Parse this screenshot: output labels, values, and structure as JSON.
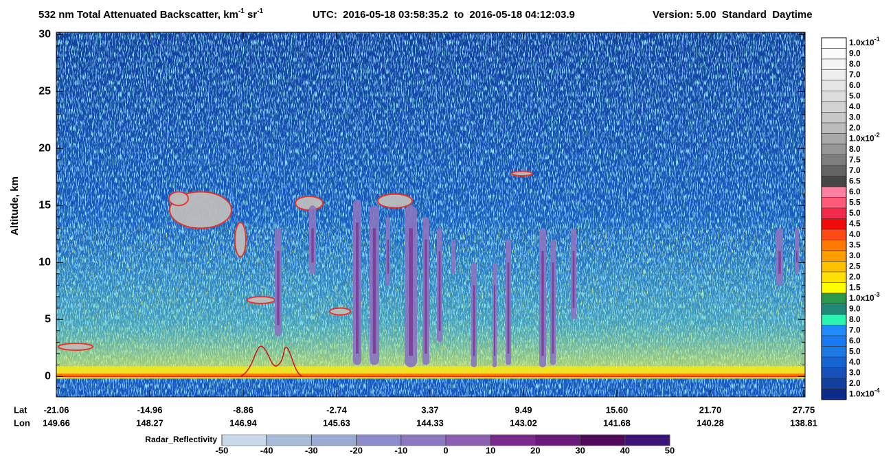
{
  "chart_data": {
    "type": "heatmap",
    "title": {
      "main": "532 nm Total Attenuated Backscatter, km",
      "sup1": "-1",
      "sr": " sr",
      "sup2": "-1",
      "utc": "UTC:  2016-05-18 03:58:35.2  to  2016-05-18 04:12:03.9",
      "version": "Version: 5.00  Standard  Daytime"
    },
    "y_label": "Altitude, km",
    "ylim": [
      -1.8,
      30.2
    ],
    "yticks": [
      0,
      5,
      10,
      15,
      20,
      25,
      30
    ],
    "x_rows": [
      {
        "name": "Lat",
        "ticks": [
          "-21.06",
          "-14.96",
          "-8.86",
          "-2.74",
          "3.37",
          "9.49",
          "15.60",
          "21.70",
          "27.75"
        ]
      },
      {
        "name": "Lon",
        "ticks": [
          "149.66",
          "148.27",
          "146.94",
          "145.63",
          "144.33",
          "143.02",
          "141.68",
          "140.28",
          "138.81"
        ]
      }
    ],
    "colorbar": {
      "labels": [
        {
          "label": "1.0x10",
          "exp": "-1"
        },
        "9.0",
        "8.0",
        "7.0",
        "6.0",
        "5.0",
        "4.0",
        "3.0",
        "2.0",
        {
          "label": "1.0x10",
          "exp": "-2"
        },
        "8.0",
        "7.5",
        "7.0",
        "6.5",
        "6.0",
        "5.5",
        "5.0",
        "4.5",
        "4.0",
        "3.5",
        "3.0",
        "2.5",
        "2.0",
        "1.5",
        {
          "label": "1.0x10",
          "exp": "-3"
        },
        "9.0",
        "8.0",
        "7.0",
        "6.0",
        "5.0",
        "4.0",
        "3.0",
        "2.0",
        {
          "label": "1.0x10",
          "exp": "-4"
        }
      ],
      "colors": [
        "#ffffff",
        "#fafafa",
        "#f4f4f4",
        "#eeeeee",
        "#e6e6e6",
        "#dddddd",
        "#d3d3d3",
        "#c8c8c8",
        "#bcbcbc",
        "#a9a9a9",
        "#969696",
        "#7e7e7e",
        "#646464",
        "#464646",
        "#ff7fa0",
        "#ff5a7a",
        "#f52a4a",
        "#f00a0a",
        "#ff4a14",
        "#ff7800",
        "#ff9c00",
        "#ffc000",
        "#ffe000",
        "#ffff00",
        "#2a9a4a",
        "#1e8a78",
        "#2af5b0",
        "#1e8cff",
        "#1a78f0",
        "#1c7ae6",
        "#1464d2",
        "#1650b8",
        "#12409c",
        "#0c2a8a"
      ]
    },
    "radar_colorbar": {
      "label": "Radar_Reflectivity",
      "lim": [
        -50,
        50
      ],
      "ticks": [
        -50,
        -40,
        -30,
        -20,
        -10,
        0,
        10,
        20,
        30,
        40,
        50
      ],
      "colors": [
        "#c8d8e8",
        "#a8bcd8",
        "#9aaad2",
        "#8c8cc8",
        "#8c78be",
        "#8c60b0",
        "#7a2a8c",
        "#6a1a78",
        "#500a5a",
        "#3c1478"
      ]
    }
  }
}
